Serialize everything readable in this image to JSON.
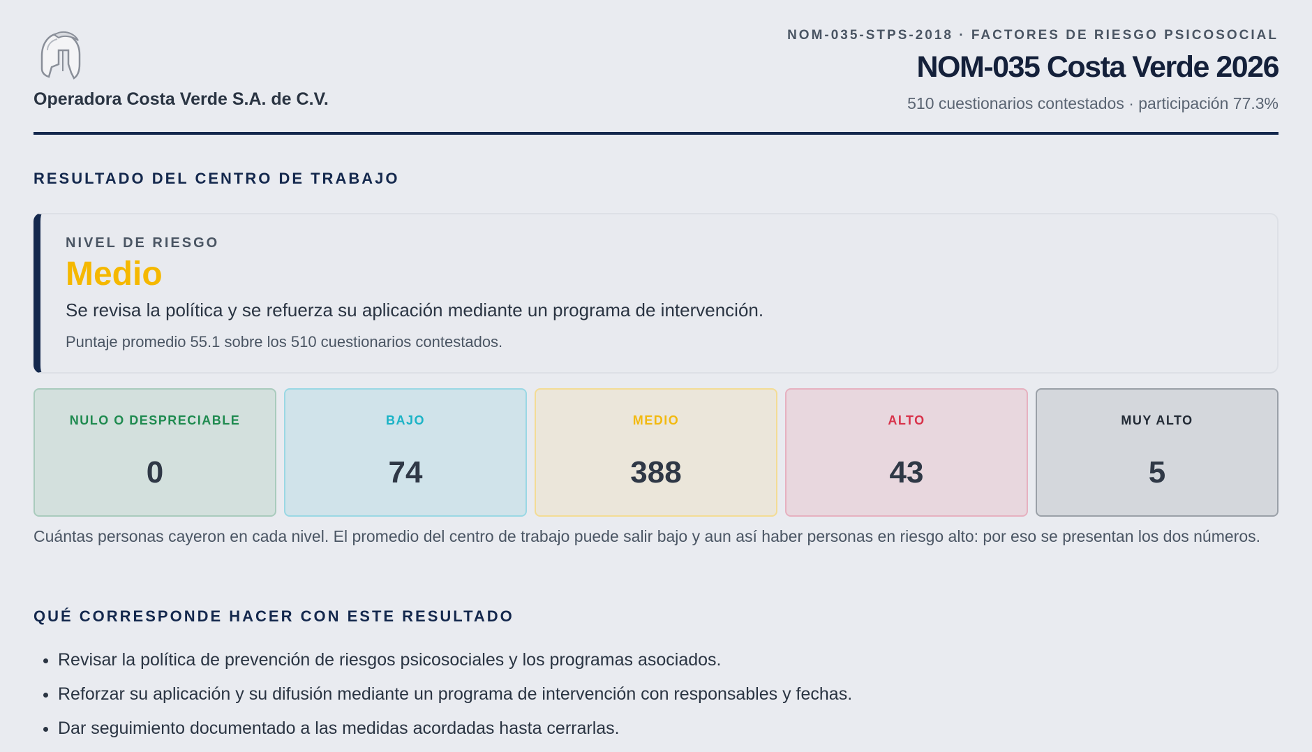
{
  "header": {
    "company": "Operadora Costa Verde S.A. de C.V.",
    "kicker": "NOM-035-STPS-2018 · FACTORES DE RIESGO PSICOSOCIAL",
    "title": "NOM-035 Costa Verde 2026",
    "subtitle": "510 cuestionarios contestados · participación 77.3%",
    "logo_icon": "spartan-helmet-icon"
  },
  "result": {
    "section_title": "RESULTADO DEL CENTRO DE TRABAJO",
    "label": "NIVEL DE RIESGO",
    "level": "Medio",
    "level_color": "#f5b800",
    "description": "Se revisa la política y se refuerza su aplicación mediante un programa de intervención.",
    "score_text": "Puntaje promedio 55.1 sobre los 510 cuestionarios contestados."
  },
  "levels": [
    {
      "name": "NULO O DESPRECIABLE",
      "count": "0",
      "color": "#1e8a4f",
      "bg": "#d3e0dd",
      "border": "#a9cbbd"
    },
    {
      "name": "BAJO",
      "count": "74",
      "color": "#1ab3c6",
      "bg": "#d0e3ea",
      "border": "#9ad8e4"
    },
    {
      "name": "MEDIO",
      "count": "388",
      "color": "#f2b90f",
      "bg": "#ebe6da",
      "border": "#f3dc95"
    },
    {
      "name": "ALTO",
      "count": "43",
      "color": "#d8324a",
      "bg": "#e8d7de",
      "border": "#e6b1c0"
    },
    {
      "name": "MUY ALTO",
      "count": "5",
      "color": "#222a35",
      "bg": "#d4d7dc",
      "border": "#9aa0a8"
    }
  ],
  "note": "Cuántas personas cayeron en cada nivel. El promedio del centro de trabajo puede salir bajo y aun así haber personas en riesgo alto: por eso se presentan los dos números.",
  "actions": {
    "section_title": "QUÉ CORRESPONDE HACER CON ESTE RESULTADO",
    "items": [
      "Revisar la política de prevención de riesgos psicosociales y los programas asociados.",
      "Reforzar su aplicación y su difusión mediante un programa de intervención con responsables y fechas.",
      "Dar seguimiento documentado a las medidas acordadas hasta cerrarlas."
    ]
  }
}
